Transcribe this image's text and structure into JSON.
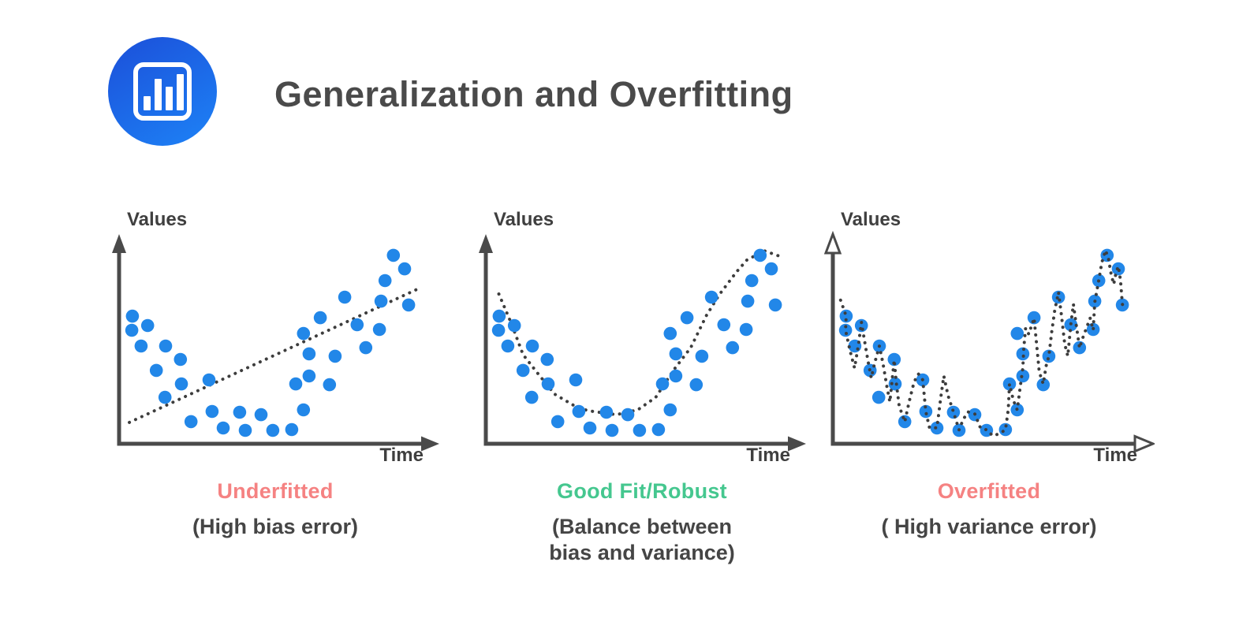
{
  "header": {
    "title": "Generalization and Overfitting",
    "icon": "bar-chart-icon"
  },
  "colors": {
    "axis_gray": "#4a4a4a",
    "fit_line_dark": "#3d3d3d",
    "dot_blue": "#2287e8",
    "underfit_overfit_red": "#f58282",
    "good_fit_green": "#45c78f",
    "text_dark": "#454545",
    "icon_blue_top": "#1b4fd9",
    "icon_blue_bottom": "#1d7bf2"
  },
  "icon_bars": [
    18,
    40,
    30,
    46
  ],
  "chart_data": {
    "type": "scatter",
    "grid": false,
    "axis_ticks": "none",
    "scatter_points_pct": [
      [
        4.1,
        56.9
      ],
      [
        4.3,
        64.0
      ],
      [
        7.1,
        49.0
      ],
      [
        9.2,
        59.3
      ],
      [
        12.0,
        36.8
      ],
      [
        14.8,
        23.3
      ],
      [
        15.0,
        49.0
      ],
      [
        19.8,
        42.3
      ],
      [
        20.1,
        30.0
      ],
      [
        23.2,
        11.1
      ],
      [
        29.0,
        32.0
      ],
      [
        30.0,
        16.2
      ],
      [
        33.6,
        7.9
      ],
      [
        38.9,
        15.8
      ],
      [
        40.7,
        6.7
      ],
      [
        45.8,
        14.6
      ],
      [
        49.6,
        6.7
      ],
      [
        55.7,
        7.1
      ],
      [
        57.0,
        30.0
      ],
      [
        59.5,
        17.0
      ],
      [
        59.5,
        55.3
      ],
      [
        61.3,
        34.0
      ],
      [
        61.3,
        45.1
      ],
      [
        64.9,
        63.2
      ],
      [
        67.9,
        29.6
      ],
      [
        69.7,
        43.9
      ],
      [
        72.8,
        73.5
      ],
      [
        76.8,
        59.7
      ],
      [
        79.6,
        48.2
      ],
      [
        84.0,
        57.3
      ],
      [
        84.5,
        71.5
      ],
      [
        85.8,
        81.8
      ],
      [
        88.5,
        94.5
      ],
      [
        92.1,
        87.7
      ],
      [
        93.4,
        69.6
      ]
    ],
    "charts": [
      {
        "name": "underfitted",
        "title": "Underfitted",
        "title_color": "#f58282",
        "subtitle_lines": [
          "(High bias error)"
        ],
        "xlabel": "Time",
        "ylabel": "Values",
        "fit_type": "linear",
        "arrow_style": "filled",
        "fit_on_top": false,
        "fit_curve_pct": [
          [
            3.3,
            10.7
          ],
          [
            96.2,
            77.5
          ]
        ]
      },
      {
        "name": "good-fit",
        "title": "Good Fit/Robust",
        "title_color": "#45c78f",
        "subtitle_lines": [
          "(Balance between",
          "bias and variance)"
        ],
        "xlabel": "Time",
        "ylabel": "Values",
        "fit_type": "smooth",
        "arrow_style": "filled",
        "fit_on_top": false,
        "fit_curve_pct": [
          [
            4.2,
            75.1
          ],
          [
            8.2,
            60.5
          ],
          [
            12.0,
            44.7
          ],
          [
            16.6,
            35.6
          ],
          [
            22.2,
            24.9
          ],
          [
            28.6,
            19.0
          ],
          [
            32.9,
            16.6
          ],
          [
            42.1,
            14.6
          ],
          [
            49.0,
            17.0
          ],
          [
            54.8,
            23.3
          ],
          [
            60.5,
            36.8
          ],
          [
            66.1,
            48.2
          ],
          [
            71.2,
            64.4
          ],
          [
            75.3,
            74.7
          ],
          [
            80.9,
            86.2
          ],
          [
            84.2,
            92.1
          ],
          [
            89.8,
            96.8
          ],
          [
            95.4,
            93.7
          ]
        ]
      },
      {
        "name": "overfitted",
        "title": "Overfitted",
        "title_color": "#f58282",
        "subtitle_lines": [
          "( High variance error)"
        ],
        "xlabel": "Time",
        "ylabel": "Values",
        "fit_type": "wiggly",
        "arrow_style": "outline",
        "fit_on_top": true,
        "fit_curve_pct": [
          [
            2.5,
            72
          ],
          [
            4.3,
            64
          ],
          [
            4.1,
            57
          ],
          [
            5.5,
            47
          ],
          [
            7,
            38
          ],
          [
            8.3,
            50
          ],
          [
            9.2,
            61
          ],
          [
            10.4,
            50
          ],
          [
            11.4,
            41
          ],
          [
            12.4,
            33
          ],
          [
            13.4,
            40
          ],
          [
            15,
            49
          ],
          [
            16.2,
            40
          ],
          [
            17.4,
            29
          ],
          [
            18.4,
            21
          ],
          [
            19.8,
            42
          ],
          [
            20.5,
            30
          ],
          [
            21.4,
            19
          ],
          [
            23.2,
            11
          ],
          [
            24.6,
            21
          ],
          [
            26.2,
            31
          ],
          [
            27.6,
            35
          ],
          [
            29,
            32
          ],
          [
            30,
            16
          ],
          [
            31.2,
            8
          ],
          [
            33.6,
            8
          ],
          [
            34.8,
            23
          ],
          [
            35.8,
            34
          ],
          [
            37.2,
            24
          ],
          [
            38.9,
            16
          ],
          [
            40.7,
            7
          ],
          [
            42,
            12
          ],
          [
            43.6,
            16
          ],
          [
            45.8,
            15
          ],
          [
            47.6,
            8
          ],
          [
            49.6,
            7
          ],
          [
            51.6,
            4
          ],
          [
            53.6,
            5
          ],
          [
            55.7,
            7
          ],
          [
            56.6,
            17
          ],
          [
            57,
            30
          ],
          [
            58.2,
            22
          ],
          [
            59.5,
            17
          ],
          [
            60.4,
            28
          ],
          [
            61.3,
            38
          ],
          [
            61.6,
            48
          ],
          [
            62.2,
            58
          ],
          [
            63.2,
            55
          ],
          [
            64.9,
            63
          ],
          [
            65.8,
            49
          ],
          [
            66.6,
            36
          ],
          [
            67.9,
            30
          ],
          [
            68.8,
            39
          ],
          [
            69.7,
            44
          ],
          [
            70.6,
            56
          ],
          [
            71.6,
            67
          ],
          [
            72.8,
            76
          ],
          [
            73.8,
            64
          ],
          [
            74.8,
            50
          ],
          [
            75.8,
            44
          ],
          [
            76.8,
            60
          ],
          [
            77.6,
            70
          ],
          [
            78.4,
            61
          ],
          [
            79.6,
            48
          ],
          [
            80.6,
            53
          ],
          [
            81.8,
            58
          ],
          [
            83,
            63
          ],
          [
            84,
            57
          ],
          [
            84.5,
            71
          ],
          [
            85.8,
            82
          ],
          [
            86.8,
            91
          ],
          [
            88,
            97
          ],
          [
            88.9,
            93
          ],
          [
            89.8,
            85
          ],
          [
            90.6,
            80
          ],
          [
            91.4,
            86
          ],
          [
            92.1,
            89
          ],
          [
            92.8,
            82
          ],
          [
            93.4,
            70
          ],
          [
            94.2,
            67
          ]
        ]
      }
    ]
  }
}
